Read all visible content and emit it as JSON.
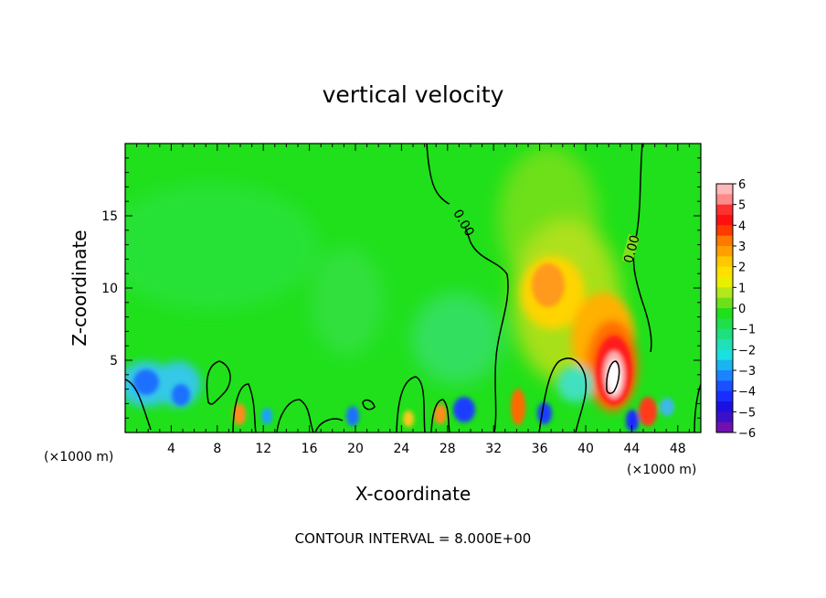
{
  "chart_data": {
    "type": "heatmap",
    "title": "vertical velocity",
    "xlabel": "X-coordinate",
    "ylabel": "Z-coordinate",
    "x_unit": "(×1000 m)",
    "xlim": [
      0,
      50
    ],
    "ylim": [
      0,
      20
    ],
    "x_ticks": [
      4,
      8,
      12,
      16,
      20,
      24,
      28,
      32,
      36,
      40,
      44,
      48
    ],
    "y_ticks": [
      5,
      10,
      15
    ],
    "colorbar": {
      "levels": [
        6,
        5,
        4,
        3,
        2,
        1,
        0,
        -1,
        -2,
        -3,
        -4,
        -5,
        -6
      ],
      "labels": [
        "6",
        "5",
        "4",
        "3",
        "2",
        "1",
        "0",
        "−1",
        "−2",
        "−3",
        "−4",
        "−5",
        "−6"
      ]
    },
    "contour_labels": [
      "0.00",
      "0.00"
    ],
    "footer": "CONTOUR INTERVAL = 8.000E+00",
    "features": [
      {
        "kind": "updraft",
        "x": 41.8,
        "z": 4.0,
        "w": 6.2
      },
      {
        "kind": "updraft",
        "x": 37.0,
        "z": 10.0,
        "w": 3.8
      },
      {
        "kind": "updraft",
        "x": 40.5,
        "z": 7.0,
        "w": 3.5
      },
      {
        "kind": "updraft",
        "x": 45.0,
        "z": 1.5,
        "w": 4.0
      },
      {
        "kind": "updraft",
        "x": 10.0,
        "z": 1.5,
        "w": 3.0
      },
      {
        "kind": "updraft",
        "x": 27.5,
        "z": 1.5,
        "w": 3.0
      },
      {
        "kind": "updraft",
        "x": 33.5,
        "z": 2.5,
        "w": 3.2
      },
      {
        "kind": "downdraft",
        "x": 2.5,
        "z": 3.2,
        "w": -3.0
      },
      {
        "kind": "downdraft",
        "x": 5.0,
        "z": 2.5,
        "w": -3.0
      },
      {
        "kind": "downdraft",
        "x": 30.0,
        "z": 1.5,
        "w": -4.0
      },
      {
        "kind": "downdraft",
        "x": 35.5,
        "z": 1.2,
        "w": -3.5
      },
      {
        "kind": "downdraft",
        "x": 43.5,
        "z": 1.0,
        "w": -4.0
      },
      {
        "kind": "downdraft",
        "x": 20.0,
        "z": 1.0,
        "w": -3.0
      }
    ]
  }
}
